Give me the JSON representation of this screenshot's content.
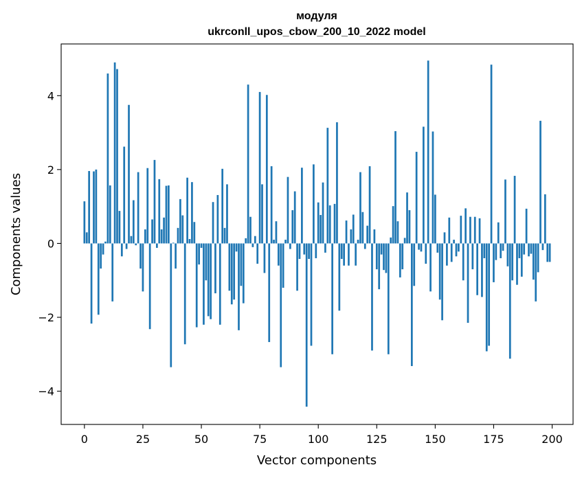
{
  "chart_data": {
    "type": "bar",
    "title": "модуля",
    "subtitle": "ukrconll_upos_cbow_200_10_2022 model",
    "xlabel": "Vector components",
    "ylabel": "Components values",
    "xlim": [
      -9.95,
      208.95
    ],
    "ylim": [
      -4.9,
      5.4
    ],
    "xticks": [
      0,
      25,
      50,
      75,
      100,
      125,
      150,
      175,
      200
    ],
    "yticks": [
      -4,
      -2,
      0,
      2,
      4
    ],
    "ytick_labels": [
      "−4",
      "−2",
      "0",
      "2",
      "4"
    ],
    "grid": false,
    "bar_color": "#1f77b4",
    "values": [
      1.14,
      0.3,
      1.96,
      -2.17,
      1.95,
      2.0,
      -1.93,
      -0.68,
      -0.3,
      0.05,
      4.6,
      1.57,
      -1.57,
      4.9,
      4.72,
      0.88,
      -0.35,
      2.62,
      -0.15,
      3.75,
      0.2,
      1.17,
      -0.05,
      1.93,
      -0.68,
      -1.3,
      0.38,
      2.04,
      -2.32,
      0.65,
      2.26,
      -0.12,
      1.74,
      0.38,
      0.7,
      1.56,
      1.57,
      -3.35,
      0.02,
      -0.68,
      0.42,
      1.2,
      0.76,
      -2.73,
      1.78,
      0.12,
      1.66,
      0.58,
      -2.27,
      -0.57,
      -0.12,
      -2.2,
      -1.0,
      -1.97,
      -2.05,
      1.12,
      -1.35,
      1.31,
      -2.2,
      2.02,
      0.42,
      1.6,
      -1.28,
      -1.65,
      -1.52,
      -0.22,
      -2.35,
      -1.15,
      -1.62,
      0.14,
      4.3,
      0.72,
      -0.1,
      0.2,
      -0.55,
      4.1,
      1.6,
      -0.8,
      4.02,
      -2.67,
      2.09,
      0.1,
      0.6,
      -0.6,
      -3.35,
      -1.2,
      0.1,
      1.8,
      -0.15,
      0.9,
      1.41,
      -1.28,
      -0.42,
      2.05,
      -0.3,
      -4.42,
      -0.42,
      -2.77,
      2.14,
      -0.4,
      1.11,
      0.77,
      1.65,
      -0.25,
      3.13,
      1.03,
      -3.0,
      1.07,
      3.28,
      -1.82,
      -0.42,
      -0.6,
      0.62,
      -0.6,
      0.38,
      0.78,
      -0.6,
      0.1,
      1.93,
      0.85,
      -0.15,
      0.48,
      2.09,
      -2.9,
      0.38,
      -0.7,
      -1.24,
      -0.3,
      -0.72,
      -0.8,
      -3.0,
      0.16,
      1.01,
      3.04,
      0.6,
      -0.92,
      -0.7,
      0.15,
      1.38,
      0.9,
      -3.32,
      -1.15,
      2.48,
      -0.17,
      -0.22,
      3.16,
      -0.55,
      4.95,
      -1.3,
      3.03,
      1.32,
      -0.25,
      -1.52,
      -2.08,
      0.3,
      -0.6,
      0.7,
      -0.5,
      0.1,
      -0.35,
      -0.22,
      0.75,
      -1.0,
      0.95,
      -2.15,
      0.72,
      -0.7,
      0.72,
      -1.4,
      0.68,
      -1.45,
      -0.4,
      -2.92,
      -2.77,
      4.84,
      -1.05,
      -0.45,
      0.57,
      -0.4,
      -0.2,
      1.73,
      -0.62,
      -3.12,
      -1.0,
      1.83,
      -1.12,
      -0.4,
      -0.9,
      -0.3,
      0.94,
      -0.35,
      -0.28,
      -0.98,
      -1.57,
      -0.78,
      3.32,
      -0.18,
      1.33,
      -0.5,
      -0.5
    ]
  }
}
